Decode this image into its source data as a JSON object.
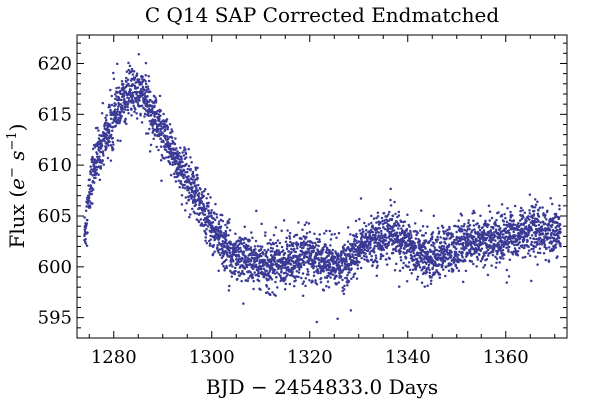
{
  "chart_data": {
    "type": "scatter",
    "title": "C Q14 SAP Corrected Endmatched",
    "xlabel": "BJD − 2454833.0 Days",
    "ylabel": {
      "prefix": "Flux (",
      "e": "e",
      "e_sup": "−",
      "s": " s",
      "s_sup": "−1",
      "suffix": ")"
    },
    "xlim": [
      1272.5,
      1372.5
    ],
    "ylim": [
      593,
      622.8
    ],
    "x_ticks": [
      1280,
      1300,
      1320,
      1340,
      1360
    ],
    "x_tick_labels": [
      "1280",
      "1300",
      "1320",
      "1340",
      "1360"
    ],
    "y_ticks": [
      595,
      600,
      605,
      610,
      615,
      620
    ],
    "y_tick_labels": [
      "595",
      "600",
      "605",
      "610",
      "615",
      "620"
    ],
    "marker_color": "#3a3a96",
    "series": [
      {
        "name": "flux",
        "x_range": [
          1274,
          1371.2
        ],
        "trend": [
          [
            1274,
            603
          ],
          [
            1275,
            607
          ],
          [
            1276,
            610
          ],
          [
            1278,
            612.5
          ],
          [
            1280,
            614.5
          ],
          [
            1282,
            616.5
          ],
          [
            1284,
            617.2
          ],
          [
            1286,
            616.8
          ],
          [
            1288,
            615.2
          ],
          [
            1290,
            613
          ],
          [
            1292,
            611
          ],
          [
            1294,
            609.5
          ],
          [
            1296,
            608
          ],
          [
            1298,
            606
          ],
          [
            1300,
            604
          ],
          [
            1302,
            602.5
          ],
          [
            1304,
            601.5
          ],
          [
            1306,
            601
          ],
          [
            1308,
            600.5
          ],
          [
            1310,
            600.2
          ],
          [
            1315,
            600.5
          ],
          [
            1318,
            601
          ],
          [
            1322,
            600.8
          ],
          [
            1325,
            600.2
          ],
          [
            1328,
            600.5
          ],
          [
            1330,
            601.8
          ],
          [
            1333,
            602.6
          ],
          [
            1336,
            603.2
          ],
          [
            1339,
            602.5
          ],
          [
            1342,
            601.3
          ],
          [
            1345,
            601
          ],
          [
            1348,
            601.5
          ],
          [
            1352,
            602.3
          ],
          [
            1356,
            602.6
          ],
          [
            1360,
            603
          ],
          [
            1363,
            603.4
          ],
          [
            1366,
            603.6
          ],
          [
            1369,
            603.4
          ],
          [
            1371.2,
            603.3
          ]
        ],
        "scatter_spread": 1.2
      }
    ]
  }
}
